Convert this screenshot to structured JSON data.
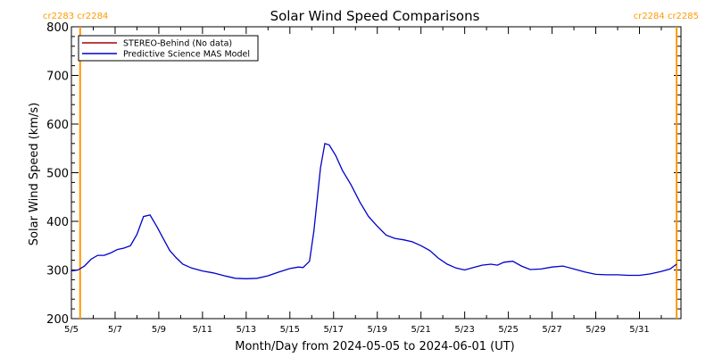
{
  "chart_data": {
    "type": "line",
    "title": "Solar Wind Speed Comparisons",
    "xlabel": "Month/Day from 2024-05-05 to 2024-06-01 (UT)",
    "ylabel": "Solar Wind Speed (km/s)",
    "ylim": [
      200,
      800
    ],
    "y_ticks": [
      "200",
      "300",
      "400",
      "500",
      "600",
      "700",
      "800"
    ],
    "xlim_days": [
      5.0,
      32.9
    ],
    "x_ticks": [
      {
        "day": 5,
        "label": "5/5"
      },
      {
        "day": 7,
        "label": "5/7"
      },
      {
        "day": 9,
        "label": "5/9"
      },
      {
        "day": 11,
        "label": "5/11"
      },
      {
        "day": 13,
        "label": "5/13"
      },
      {
        "day": 15,
        "label": "5/15"
      },
      {
        "day": 17,
        "label": "5/17"
      },
      {
        "day": 19,
        "label": "5/19"
      },
      {
        "day": 21,
        "label": "5/21"
      },
      {
        "day": 23,
        "label": "5/23"
      },
      {
        "day": 25,
        "label": "5/25"
      },
      {
        "day": 27,
        "label": "5/27"
      },
      {
        "day": 29,
        "label": "5/29"
      },
      {
        "day": 31,
        "label": "5/31"
      }
    ],
    "carrington_markers": [
      {
        "day": 5.4,
        "label": "cr2283 cr2284",
        "label_side": "top-left"
      },
      {
        "day": 32.7,
        "label": "cr2284 cr2285",
        "label_side": "top-right"
      }
    ],
    "marker_color": "#ff9900",
    "legend": {
      "placement": "top-left",
      "entries": [
        {
          "name": "STEREO-Behind (No data)",
          "color": "#aa0000"
        },
        {
          "name": "Predictive Science MAS Model",
          "color": "#0000cc"
        }
      ]
    },
    "series": [
      {
        "name": "Predictive Science MAS Model",
        "color": "#0000cc",
        "x": [
          5.0,
          5.3,
          5.6,
          5.9,
          6.2,
          6.5,
          6.8,
          7.1,
          7.4,
          7.7,
          8.0,
          8.3,
          8.6,
          8.9,
          9.2,
          9.5,
          9.8,
          10.1,
          10.5,
          11.0,
          11.5,
          12.0,
          12.5,
          13.0,
          13.5,
          14.0,
          14.5,
          15.0,
          15.4,
          15.6,
          15.9,
          16.1,
          16.4,
          16.6,
          16.8,
          17.1,
          17.4,
          17.8,
          18.2,
          18.6,
          19.0,
          19.4,
          19.8,
          20.2,
          20.6,
          21.0,
          21.4,
          21.8,
          22.2,
          22.6,
          23.0,
          23.4,
          23.8,
          24.2,
          24.5,
          24.8,
          25.2,
          25.6,
          26.0,
          26.5,
          27.0,
          27.5,
          28.0,
          28.5,
          29.0,
          29.5,
          30.0,
          30.5,
          31.0,
          31.5,
          32.0,
          32.4,
          32.7
        ],
        "y": [
          298,
          300,
          308,
          322,
          330,
          330,
          335,
          342,
          345,
          350,
          373,
          410,
          413,
          390,
          365,
          340,
          325,
          312,
          304,
          298,
          294,
          288,
          283,
          282,
          283,
          288,
          296,
          303,
          306,
          305,
          318,
          380,
          510,
          560,
          557,
          535,
          505,
          475,
          440,
          410,
          390,
          372,
          365,
          362,
          358,
          350,
          340,
          324,
          312,
          304,
          300,
          305,
          310,
          312,
          310,
          316,
          318,
          308,
          301,
          302,
          306,
          308,
          302,
          296,
          291,
          290,
          290,
          289,
          289,
          292,
          297,
          302,
          312
        ]
      },
      {
        "name": "STEREO-Behind (No data)",
        "color": "#aa0000",
        "x": [],
        "y": []
      }
    ]
  }
}
